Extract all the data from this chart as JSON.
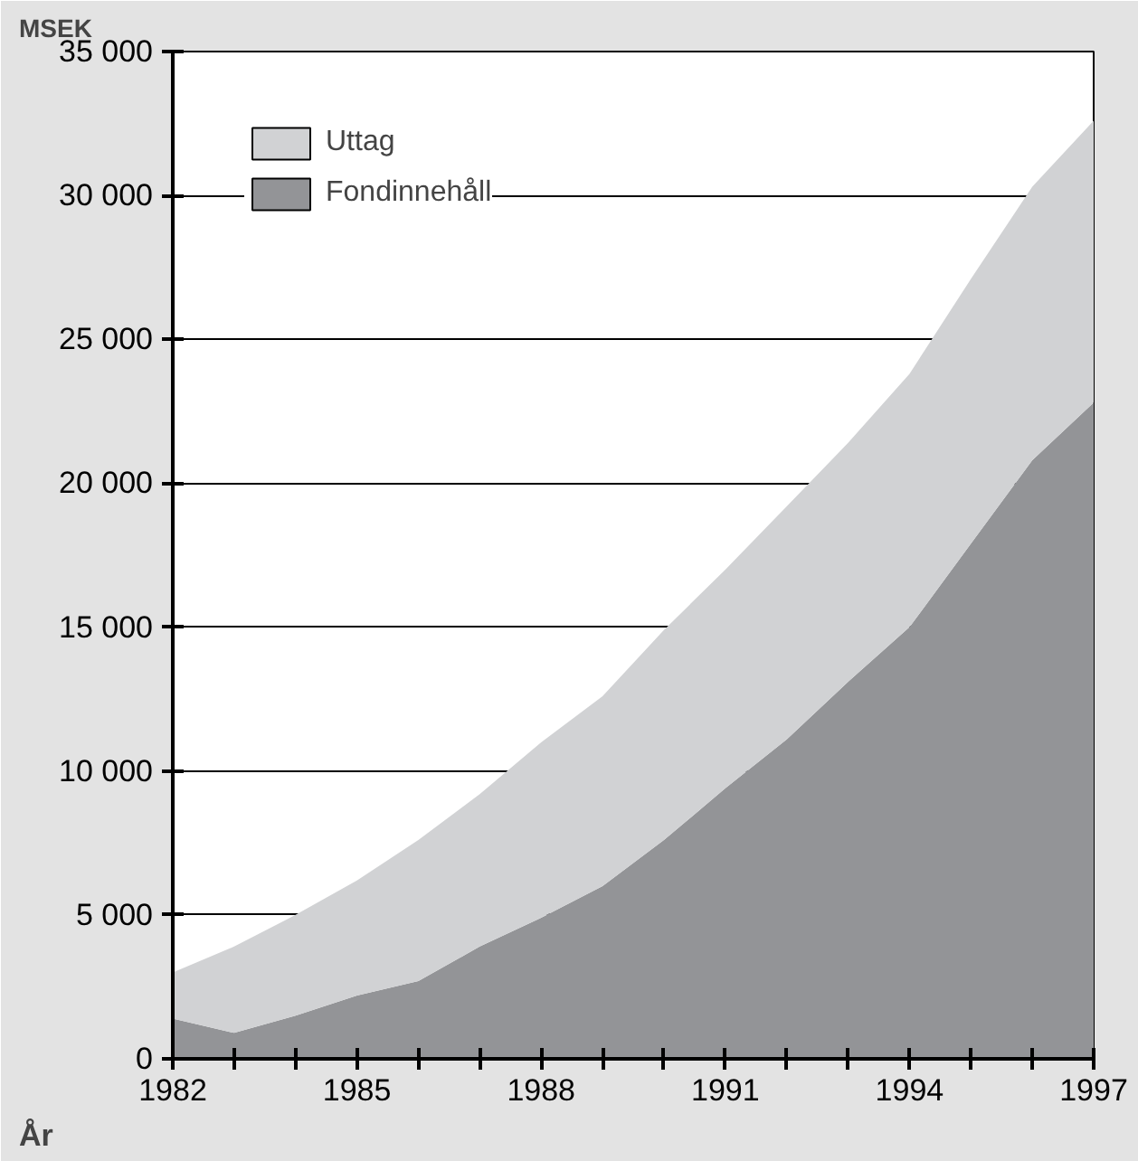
{
  "chart_data": {
    "type": "area",
    "stacked": true,
    "ylabel": "MSEK",
    "xlabel": "År",
    "x": [
      1982,
      1983,
      1984,
      1985,
      1986,
      1987,
      1988,
      1989,
      1990,
      1991,
      1992,
      1993,
      1994,
      1995,
      1996,
      1997
    ],
    "series": [
      {
        "name": "Fondinnehåll",
        "color": "#939497",
        "values": [
          1400,
          900,
          1500,
          2200,
          2700,
          3900,
          4900,
          6000,
          7600,
          9400,
          11100,
          13100,
          15000,
          17900,
          20800,
          22800
        ]
      },
      {
        "name": "Uttag",
        "color": "#d1d2d4",
        "values": [
          1600,
          3000,
          3500,
          4000,
          4900,
          5300,
          6100,
          6600,
          7300,
          7600,
          8100,
          8300,
          8800,
          9200,
          9500,
          9800
        ]
      }
    ],
    "xlim": [
      1982,
      1997
    ],
    "xticks": [
      1982,
      {
        "value": 1983,
        "label": null
      },
      {
        "value": 1984,
        "label": null
      },
      1985,
      {
        "value": 1986,
        "label": null
      },
      {
        "value": 1987,
        "label": null
      },
      1988,
      {
        "value": 1989,
        "label": null
      },
      {
        "value": 1990,
        "label": null
      },
      1991,
      {
        "value": 1992,
        "label": null
      },
      {
        "value": 1993,
        "label": null
      },
      1994,
      {
        "value": 1995,
        "label": null
      },
      {
        "value": 1996,
        "label": null
      },
      1997
    ],
    "ylim": [
      0,
      35000
    ],
    "yticks": [
      0,
      {
        "value": 5000,
        "label": "5 000"
      },
      {
        "value": 10000,
        "label": "10 000"
      },
      {
        "value": 15000,
        "label": "15 000"
      },
      {
        "value": 20000,
        "label": "20 000"
      },
      {
        "value": 25000,
        "label": "25 000"
      },
      {
        "value": 30000,
        "label": "30 000"
      },
      {
        "value": 35000,
        "label": "35 000"
      }
    ],
    "grid": "y",
    "legend": "top left"
  }
}
